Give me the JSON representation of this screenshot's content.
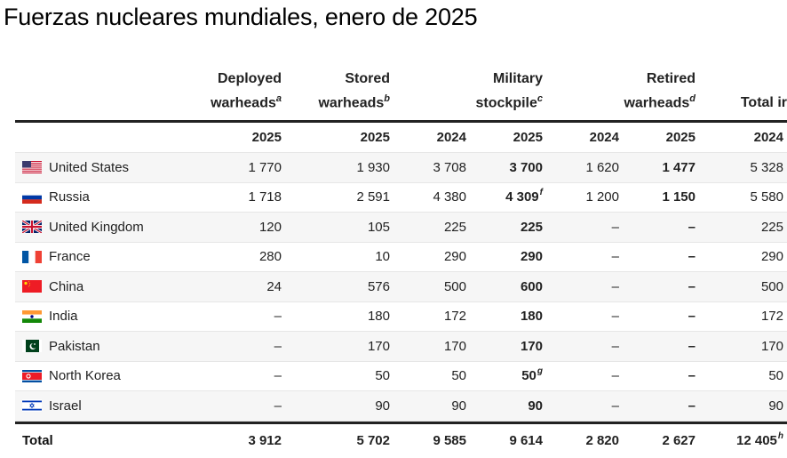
{
  "title": "Fuerzas nucleares mundiales, enero de 2025",
  "headers": [
    {
      "line1": "Deployed",
      "line2": "warheads",
      "note": "a"
    },
    {
      "line1": "Stored",
      "line2": "warheads",
      "note": "b"
    },
    {
      "line1": "Military",
      "line2": "stockpile",
      "note": "c"
    },
    {
      "line1": "Retired",
      "line2": "warheads",
      "note": "d"
    },
    {
      "line1": "",
      "line2": "Total ir",
      "note": ""
    }
  ],
  "years": [
    "2025",
    "2025",
    "2024",
    "2025",
    "2024",
    "2025",
    "2024"
  ],
  "rows": [
    {
      "country": "United States",
      "flag": "us-flag",
      "values": [
        "1 770",
        "1 930",
        "3 708",
        "3 700",
        "1 620",
        "1 477",
        "5 328"
      ],
      "notes": [
        "",
        "",
        "",
        "",
        "",
        "",
        ""
      ]
    },
    {
      "country": "Russia",
      "flag": "russia-flag",
      "values": [
        "1 718",
        "2 591",
        "4 380",
        "4 309",
        "1 200",
        "1 150",
        "5 580"
      ],
      "notes": [
        "",
        "",
        "",
        "f",
        "",
        "",
        ""
      ]
    },
    {
      "country": "United Kingdom",
      "flag": "uk-flag",
      "values": [
        "120",
        "105",
        "225",
        "225",
        "–",
        "–",
        "225"
      ],
      "notes": [
        "",
        "",
        "",
        "",
        "",
        "",
        ""
      ]
    },
    {
      "country": "France",
      "flag": "france-flag",
      "values": [
        "280",
        "10",
        "290",
        "290",
        "–",
        "–",
        "290"
      ],
      "notes": [
        "",
        "",
        "",
        "",
        "",
        "",
        ""
      ]
    },
    {
      "country": "China",
      "flag": "china-flag",
      "values": [
        "24",
        "576",
        "500",
        "600",
        "–",
        "–",
        "500"
      ],
      "notes": [
        "",
        "",
        "",
        "",
        "",
        "",
        ""
      ]
    },
    {
      "country": "India",
      "flag": "india-flag",
      "values": [
        "–",
        "180",
        "172",
        "180",
        "–",
        "–",
        "172"
      ],
      "notes": [
        "",
        "",
        "",
        "",
        "",
        "",
        ""
      ]
    },
    {
      "country": "Pakistan",
      "flag": "pakistan-flag",
      "values": [
        "–",
        "170",
        "170",
        "170",
        "–",
        "–",
        "170"
      ],
      "notes": [
        "",
        "",
        "",
        "",
        "",
        "",
        ""
      ]
    },
    {
      "country": "North Korea",
      "flag": "north-korea-flag",
      "values": [
        "–",
        "50",
        "50",
        "50",
        "–",
        "–",
        "50"
      ],
      "notes": [
        "",
        "",
        "",
        "g",
        "",
        "",
        ""
      ]
    },
    {
      "country": "Israel",
      "flag": "israel-flag",
      "values": [
        "–",
        "90",
        "90",
        "90",
        "–",
        "–",
        "90"
      ],
      "notes": [
        "",
        "",
        "",
        "",
        "",
        "",
        ""
      ]
    }
  ],
  "total": {
    "label": "Total",
    "values": [
      "3 912",
      "5 702",
      "9 585",
      "9 614",
      "2 820",
      "2 627",
      "12 405"
    ],
    "notes": [
      "",
      "",
      "",
      "",
      "",
      "",
      "h"
    ]
  },
  "colors": {
    "shade": "#f6f6f6",
    "rule": "#222222"
  }
}
